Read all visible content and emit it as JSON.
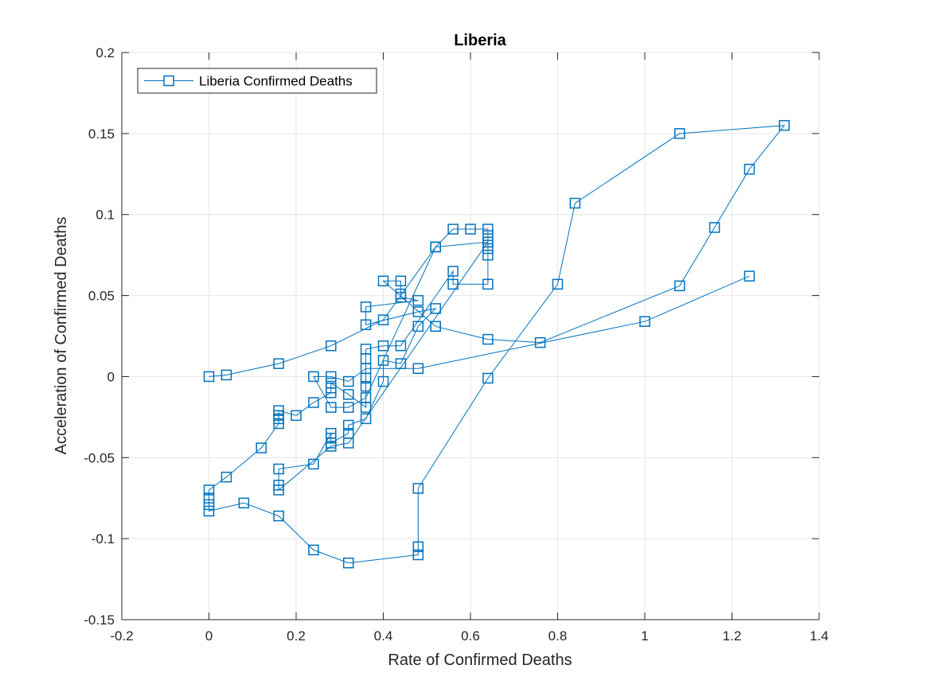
{
  "chart_data": {
    "type": "line",
    "title": "Liberia",
    "xlabel": "Rate of Confirmed Deaths",
    "ylabel": "Acceleration of Confirmed Deaths",
    "xlim": [
      -0.2,
      1.4
    ],
    "ylim": [
      -0.15,
      0.2
    ],
    "xticks": [
      "-0.2",
      "0",
      "0.2",
      "0.4",
      "0.6",
      "0.8",
      "1",
      "1.2",
      "1.4"
    ],
    "yticks": [
      "-0.15",
      "-0.1",
      "-0.05",
      "0",
      "0.05",
      "0.1",
      "0.15",
      "0.2"
    ],
    "grid": true,
    "legend_location": "top-left",
    "marker": "square",
    "series": [
      {
        "name": "Liberia Confirmed Deaths",
        "color": "#0072BD",
        "points": [
          [
            0,
            0
          ],
          [
            0.04,
            0.001
          ],
          [
            0.16,
            0.008
          ],
          [
            0.28,
            0.019
          ],
          [
            0.4,
            0.035
          ],
          [
            0.52,
            0.08
          ],
          [
            0.56,
            0.091
          ],
          [
            0.6,
            0.091
          ],
          [
            0.64,
            0.091
          ],
          [
            0.64,
            0.087
          ],
          [
            0.64,
            0.083
          ],
          [
            0.64,
            0.079
          ],
          [
            0.64,
            0.075
          ],
          [
            0.64,
            0.057
          ],
          [
            0.56,
            0.057
          ],
          [
            0.56,
            0.065
          ],
          [
            0.44,
            0.019
          ],
          [
            0.4,
            0.019
          ],
          [
            0.36,
            0.017
          ],
          [
            0.36,
            0.011
          ],
          [
            0.36,
            -0.001
          ],
          [
            0.36,
            -0.006
          ],
          [
            0.36,
            -0.019
          ],
          [
            0.32,
            -0.011
          ],
          [
            0.28,
            -0.004
          ],
          [
            0.28,
            -0.007
          ],
          [
            0.28,
            -0.01
          ],
          [
            0.24,
            -0.016
          ],
          [
            0.2,
            -0.024
          ],
          [
            0.16,
            -0.021
          ],
          [
            0.16,
            -0.024
          ],
          [
            0.16,
            -0.026
          ],
          [
            0.16,
            -0.029
          ],
          [
            0.12,
            -0.044
          ],
          [
            0.04,
            -0.062
          ],
          [
            0,
            -0.07
          ],
          [
            0,
            -0.075
          ],
          [
            0,
            -0.079
          ],
          [
            0,
            -0.083
          ],
          [
            0.08,
            -0.078
          ],
          [
            0.16,
            -0.086
          ],
          [
            0.24,
            -0.107
          ],
          [
            0.32,
            -0.115
          ],
          [
            0.48,
            -0.11
          ],
          [
            0.48,
            -0.105
          ],
          [
            0.48,
            -0.069
          ],
          [
            0.64,
            -0.001
          ],
          [
            0.8,
            0.057
          ],
          [
            0.84,
            0.107
          ],
          [
            1.08,
            0.15
          ],
          [
            1.32,
            0.155
          ],
          [
            1.24,
            0.128
          ],
          [
            1.16,
            0.092
          ],
          [
            1.08,
            0.056
          ],
          [
            0.76,
            0.021
          ],
          [
            0.64,
            0.023
          ],
          [
            0.52,
            0.031
          ],
          [
            0.52,
            0.031
          ],
          [
            0.4,
            0.059
          ],
          [
            0.44,
            0.059
          ],
          [
            0.44,
            0.051
          ],
          [
            0.44,
            0.049
          ],
          [
            0.48,
            0.047
          ],
          [
            0.36,
            0.043
          ],
          [
            0.36,
            0.032
          ],
          [
            0.48,
            0.04
          ],
          [
            0.52,
            0.042
          ],
          [
            0.48,
            0.031
          ],
          [
            0.44,
            0.008
          ],
          [
            0.4,
            0.01
          ],
          [
            0.4,
            -0.003
          ],
          [
            0.36,
            -0.026
          ],
          [
            0.32,
            -0.03
          ],
          [
            0.32,
            -0.035
          ],
          [
            0.28,
            -0.041
          ],
          [
            0.28,
            -0.038
          ],
          [
            0.28,
            -0.035
          ],
          [
            0.24,
            -0.054
          ],
          [
            0.16,
            -0.057
          ],
          [
            0.16,
            -0.067
          ],
          [
            0.16,
            -0.07
          ],
          [
            0.28,
            -0.043
          ],
          [
            0.32,
            -0.041
          ],
          [
            0.64,
            0.083
          ],
          [
            0.52,
            0.08
          ],
          [
            0.36,
            -0.013
          ],
          [
            0.32,
            -0.019
          ],
          [
            0.28,
            -0.019
          ],
          [
            0.24,
            0
          ],
          [
            0.28,
            0
          ],
          [
            0.32,
            -0.003
          ],
          [
            0.36,
            0.005
          ],
          [
            0.48,
            0.005
          ],
          [
            1.0,
            0.034
          ],
          [
            1.24,
            0.062
          ]
        ]
      }
    ]
  }
}
